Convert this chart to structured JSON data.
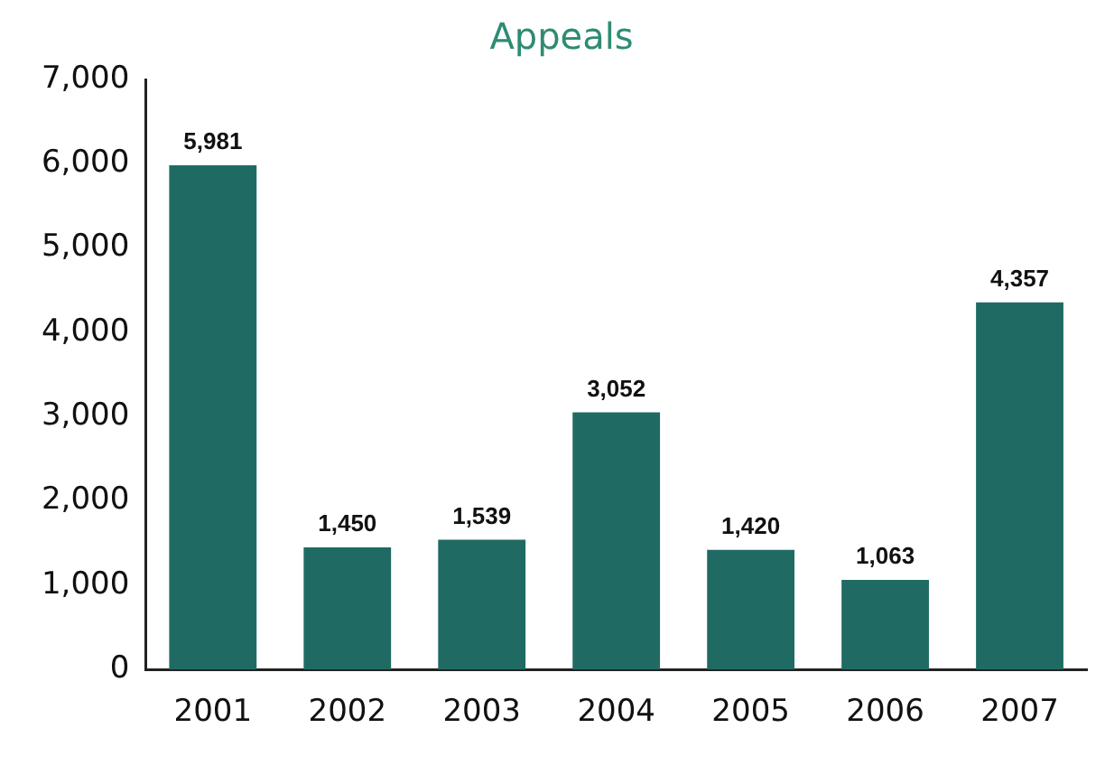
{
  "chart_data": {
    "type": "bar",
    "title": "Appeals",
    "categories": [
      "2001",
      "2002",
      "2003",
      "2004",
      "2005",
      "2006",
      "2007"
    ],
    "values": [
      5981,
      1450,
      1539,
      3052,
      1420,
      1063,
      4357
    ],
    "value_labels": [
      "5,981",
      "1,450",
      "1,539",
      "3,052",
      "1,420",
      "1,063",
      "4,357"
    ],
    "color": "#1f6b63",
    "ylim": [
      0,
      7000
    ],
    "yticks": [
      0,
      {
        "value": 1000,
        "label": "1,000"
      },
      {
        "value": 2000,
        "label": "2,000"
      },
      {
        "value": 3000,
        "label": "3,000"
      },
      {
        "value": 4000,
        "label": "4,000"
      },
      {
        "value": 5000,
        "label": "5,000"
      },
      {
        "value": 6000,
        "label": "6,000"
      },
      {
        "value": 7000,
        "label": "7,000"
      }
    ],
    "grid": false,
    "legend": false
  }
}
